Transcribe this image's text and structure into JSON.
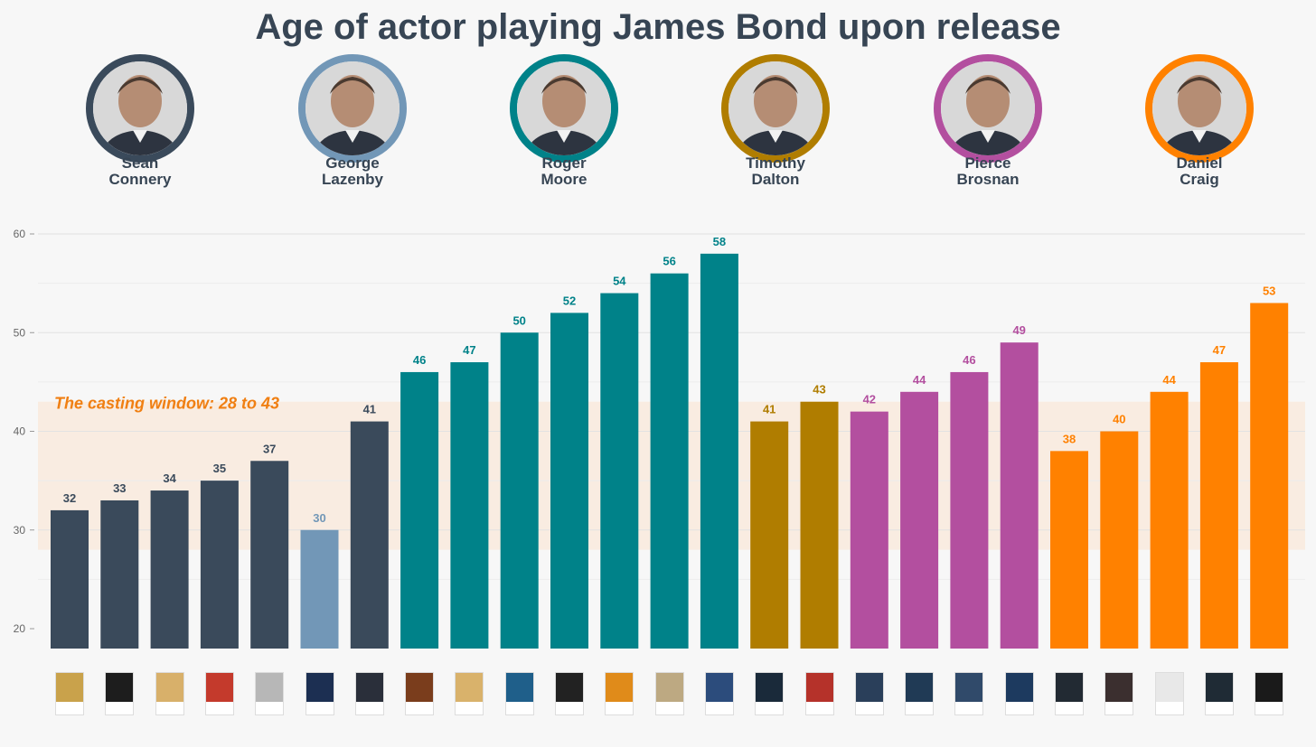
{
  "chart_data": {
    "type": "bar",
    "title": "Age of actor playing James Bond upon release",
    "xlabel": "",
    "ylabel": "",
    "ylim": [
      18,
      61
    ],
    "yticks": [
      20,
      30,
      40,
      50,
      60
    ],
    "grid": true,
    "casting_window": {
      "label": "The casting window: 28 to 43",
      "min": 28,
      "max": 43
    },
    "actors": [
      {
        "first": "Sean",
        "last": "Connery",
        "color": "#3a4a5b"
      },
      {
        "first": "George",
        "last": "Lazenby",
        "color": "#7297b7"
      },
      {
        "first": "Roger",
        "last": "Moore",
        "color": "#008289"
      },
      {
        "first": "Timothy",
        "last": "Dalton",
        "color": "#b07d00"
      },
      {
        "first": "Pierce",
        "last": "Brosnan",
        "color": "#b34f9f"
      },
      {
        "first": "Daniel",
        "last": "Craig",
        "color": "#ff8100"
      }
    ],
    "bars": [
      {
        "actor": 0,
        "value": 32
      },
      {
        "actor": 0,
        "value": 33
      },
      {
        "actor": 0,
        "value": 34
      },
      {
        "actor": 0,
        "value": 35
      },
      {
        "actor": 0,
        "value": 37
      },
      {
        "actor": 1,
        "value": 30
      },
      {
        "actor": 0,
        "value": 41
      },
      {
        "actor": 2,
        "value": 46
      },
      {
        "actor": 2,
        "value": 47
      },
      {
        "actor": 2,
        "value": 50
      },
      {
        "actor": 2,
        "value": 52
      },
      {
        "actor": 2,
        "value": 54
      },
      {
        "actor": 2,
        "value": 56
      },
      {
        "actor": 2,
        "value": 58
      },
      {
        "actor": 3,
        "value": 41
      },
      {
        "actor": 3,
        "value": 43
      },
      {
        "actor": 4,
        "value": 42
      },
      {
        "actor": 4,
        "value": 44
      },
      {
        "actor": 4,
        "value": 46
      },
      {
        "actor": 4,
        "value": 49
      },
      {
        "actor": 5,
        "value": 38
      },
      {
        "actor": 5,
        "value": 40
      },
      {
        "actor": 5,
        "value": 44
      },
      {
        "actor": 5,
        "value": 47
      },
      {
        "actor": 5,
        "value": 53
      }
    ],
    "poster_colors": [
      "#c9a24b",
      "#1d1d1d",
      "#d8b06a",
      "#c43a2c",
      "#b7b7b7",
      "#1c2f52",
      "#2a2f3a",
      "#7a3d1c",
      "#d9b26b",
      "#1f5f8a",
      "#222222",
      "#e08b1a",
      "#bda982",
      "#2c4c7c",
      "#1a2a3a",
      "#b5322a",
      "#2a3f5a",
      "#203a55",
      "#304a6a",
      "#1d3a5f",
      "#222a33",
      "#3b2f2f",
      "#e8e8e8",
      "#1f2b35",
      "#1a1a1a"
    ]
  }
}
